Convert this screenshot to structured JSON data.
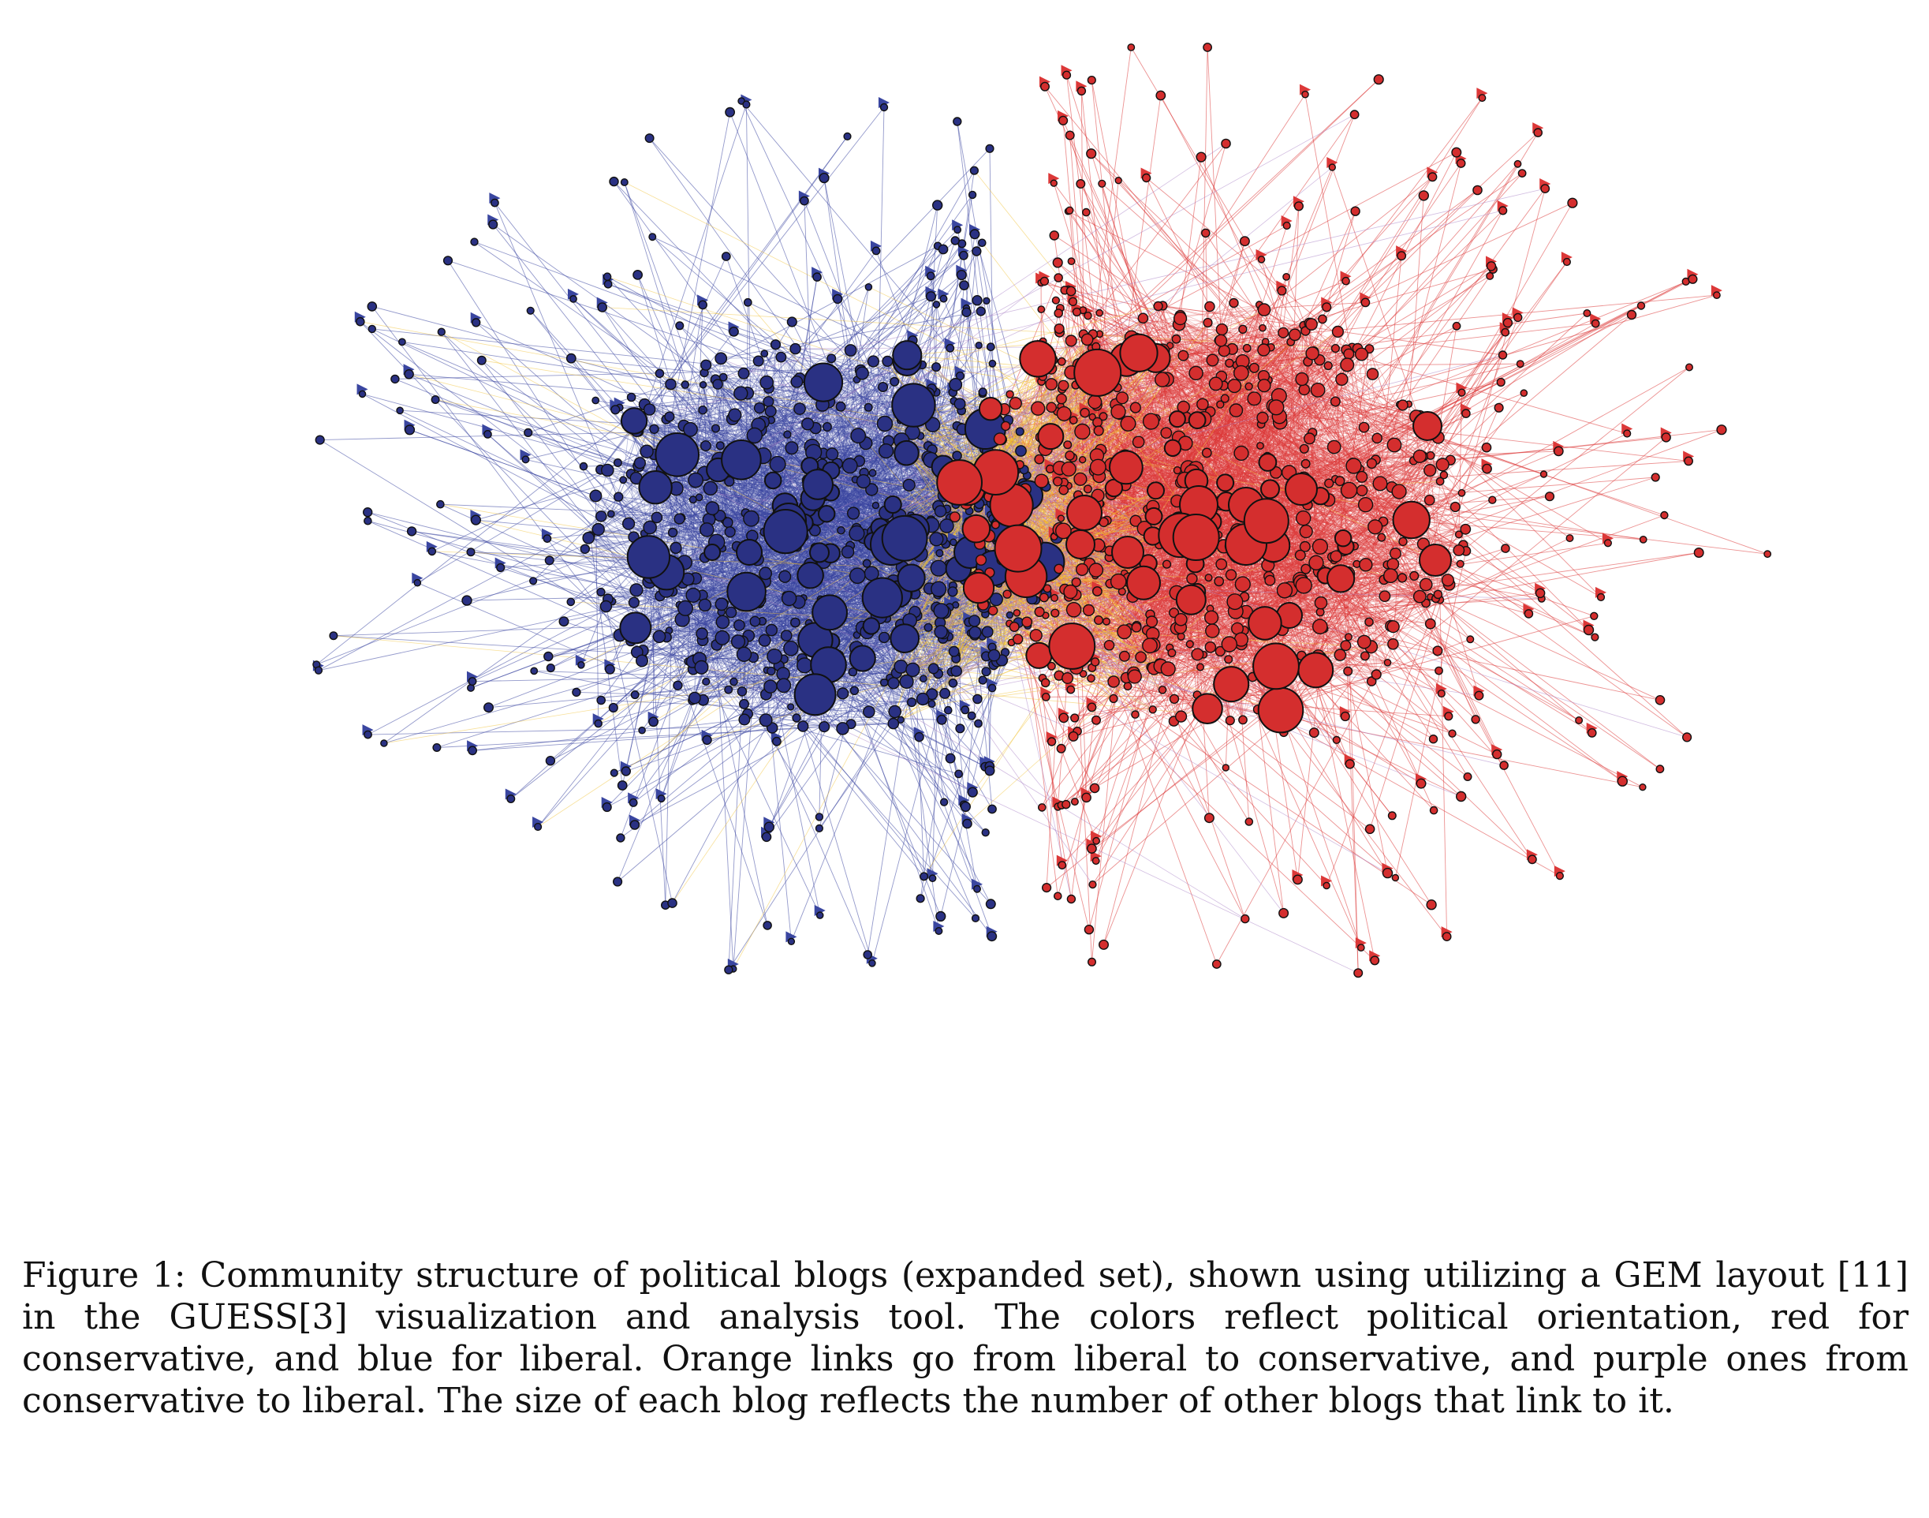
{
  "figure": {
    "label": "Figure 1:",
    "caption": "Community structure of political blogs (expanded set), shown using utilizing a GEM layout [11] in the GUESS[3] visualization and analysis tool. The colors reflect political orientation, red for conservative, and blue for liberal. Orange links go from liberal to conservative, and purple ones from conservative to liberal. The size of each blog reflects the number of other blogs that link to it."
  },
  "graph": {
    "communities": [
      {
        "orientation": "liberal",
        "color": "#2a3183"
      },
      {
        "orientation": "conservative",
        "color": "#d42e2e"
      }
    ],
    "link_colors": {
      "liberal_to_liberal": "#3a46a0",
      "conservative_to_conservative": "#dc3838",
      "liberal_to_conservative": "#f2c232",
      "conservative_to_liberal": "#a67cc4"
    }
  }
}
